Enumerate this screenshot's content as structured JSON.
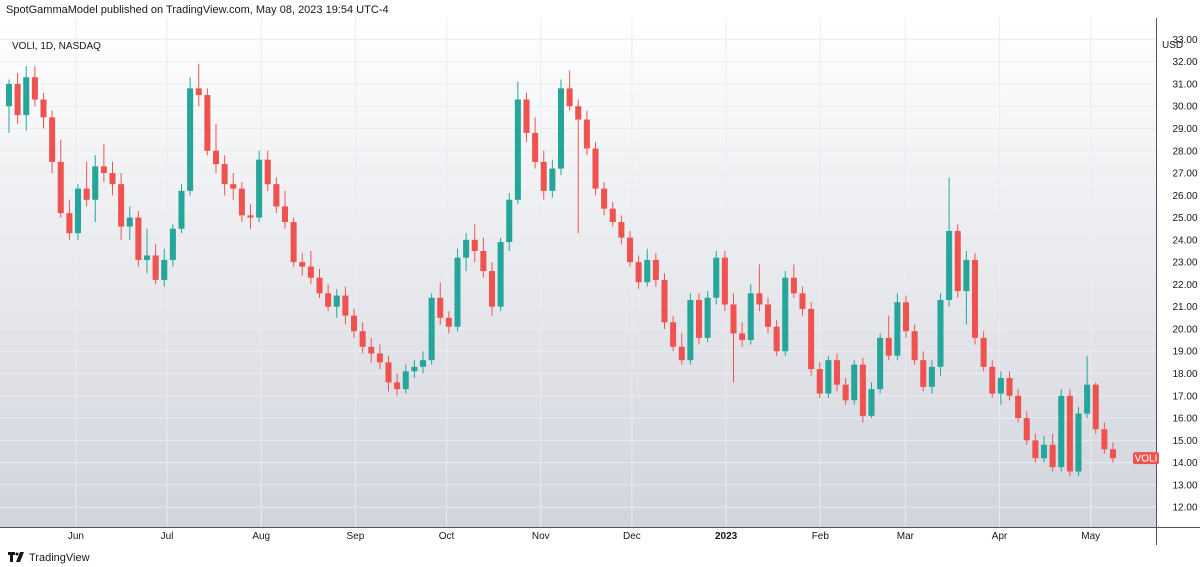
{
  "header": {
    "published_text": "SpotGammaModel published on TradingView.com, May 08, 2023 19:54 UTC-4"
  },
  "symbol_label": "VOLI, 1D, NASDAQ",
  "currency_label": "USD",
  "brand": {
    "name": "TradingView",
    "icon": "tradingview-logo-icon"
  },
  "colors": {
    "up": "#26a69a",
    "down": "#ef5350",
    "grid": "#e9ecf1",
    "axis_text": "#131722"
  },
  "chart_data": {
    "type": "candlestick",
    "title": "VOLI, 1D, NASDAQ",
    "ylabel": "USD",
    "ylim": [
      11.2,
      33.6
    ],
    "y_ticks": [
      "12.00",
      "13.00",
      "14.00",
      "15.00",
      "16.00",
      "17.00",
      "18.00",
      "19.00",
      "20.00",
      "21.00",
      "22.00",
      "23.00",
      "24.00",
      "25.00",
      "26.00",
      "27.00",
      "28.00",
      "29.00",
      "30.00",
      "31.00",
      "32.00",
      "33.00"
    ],
    "x_ticks": [
      {
        "label": "Jun",
        "date": "2022-06-01"
      },
      {
        "label": "Jul",
        "date": "2022-07-01"
      },
      {
        "label": "Aug",
        "date": "2022-08-01"
      },
      {
        "label": "Sep",
        "date": "2022-09-01"
      },
      {
        "label": "Oct",
        "date": "2022-10-01"
      },
      {
        "label": "Nov",
        "date": "2022-11-01"
      },
      {
        "label": "Dec",
        "date": "2022-12-01"
      },
      {
        "label": "2023",
        "date": "2023-01-01",
        "bold": true
      },
      {
        "label": "Feb",
        "date": "2023-02-01"
      },
      {
        "label": "Mar",
        "date": "2023-03-01"
      },
      {
        "label": "Apr",
        "date": "2023-04-01"
      },
      {
        "label": "May",
        "date": "2023-05-01"
      }
    ],
    "grid": true,
    "last_price_label": "VOLI",
    "last_price": 14.2,
    "candles_ohlc": [
      [
        30.0,
        31.2,
        28.8,
        31.0
      ],
      [
        31.0,
        31.5,
        29.2,
        29.6
      ],
      [
        29.6,
        31.8,
        28.9,
        31.3
      ],
      [
        31.3,
        31.8,
        30.0,
        30.3
      ],
      [
        30.3,
        30.6,
        29.0,
        29.5
      ],
      [
        29.5,
        29.8,
        27.0,
        27.5
      ],
      [
        27.5,
        28.5,
        25.0,
        25.2
      ],
      [
        25.2,
        25.8,
        24.0,
        24.3
      ],
      [
        24.3,
        26.5,
        24.0,
        26.3
      ],
      [
        26.3,
        27.5,
        25.5,
        25.8
      ],
      [
        25.8,
        27.8,
        24.8,
        27.3
      ],
      [
        27.3,
        28.3,
        26.6,
        27.0
      ],
      [
        27.0,
        27.5,
        26.0,
        26.5
      ],
      [
        26.5,
        27.0,
        24.0,
        24.6
      ],
      [
        24.6,
        25.5,
        24.0,
        25.0
      ],
      [
        25.0,
        25.3,
        22.8,
        23.1
      ],
      [
        23.1,
        24.5,
        22.5,
        23.3
      ],
      [
        23.3,
        23.8,
        22.0,
        22.2
      ],
      [
        22.2,
        23.6,
        21.9,
        23.1
      ],
      [
        23.1,
        24.7,
        22.8,
        24.5
      ],
      [
        24.5,
        26.5,
        24.3,
        26.2
      ],
      [
        26.2,
        31.3,
        26.0,
        30.8
      ],
      [
        30.8,
        31.9,
        30.0,
        30.5
      ],
      [
        30.5,
        30.8,
        27.8,
        28.0
      ],
      [
        28.0,
        29.2,
        27.0,
        27.4
      ],
      [
        27.4,
        27.8,
        26.0,
        26.5
      ],
      [
        26.5,
        27.0,
        25.8,
        26.3
      ],
      [
        26.3,
        26.6,
        24.8,
        25.1
      ],
      [
        25.1,
        25.6,
        24.5,
        25.0
      ],
      [
        25.0,
        28.0,
        24.8,
        27.6
      ],
      [
        27.6,
        28.0,
        26.2,
        26.5
      ],
      [
        26.5,
        26.8,
        25.2,
        25.5
      ],
      [
        25.5,
        26.2,
        24.5,
        24.8
      ],
      [
        24.8,
        25.0,
        22.8,
        23.0
      ],
      [
        23.0,
        23.4,
        22.4,
        22.8
      ],
      [
        22.8,
        23.5,
        22.0,
        22.3
      ],
      [
        22.3,
        22.7,
        21.4,
        21.6
      ],
      [
        21.6,
        22.0,
        20.8,
        21.0
      ],
      [
        21.0,
        21.8,
        20.5,
        21.5
      ],
      [
        21.5,
        21.9,
        20.2,
        20.6
      ],
      [
        20.6,
        20.9,
        19.6,
        19.9
      ],
      [
        19.9,
        20.3,
        18.9,
        19.2
      ],
      [
        19.2,
        19.6,
        18.5,
        18.9
      ],
      [
        18.9,
        19.3,
        18.2,
        18.5
      ],
      [
        18.5,
        18.8,
        17.2,
        17.6
      ],
      [
        17.6,
        18.0,
        17.0,
        17.3
      ],
      [
        17.3,
        18.4,
        17.1,
        18.1
      ],
      [
        18.1,
        18.6,
        17.8,
        18.3
      ],
      [
        18.3,
        19.0,
        18.0,
        18.6
      ],
      [
        18.6,
        21.6,
        18.4,
        21.4
      ],
      [
        21.4,
        22.1,
        20.2,
        20.5
      ],
      [
        20.5,
        20.8,
        19.8,
        20.1
      ],
      [
        20.1,
        23.6,
        19.9,
        23.2
      ],
      [
        23.2,
        24.3,
        22.6,
        24.0
      ],
      [
        24.0,
        24.7,
        23.0,
        23.5
      ],
      [
        23.5,
        24.1,
        22.3,
        22.6
      ],
      [
        22.6,
        23.0,
        20.6,
        21.0
      ],
      [
        21.0,
        24.1,
        20.8,
        23.9
      ],
      [
        23.9,
        26.1,
        23.5,
        25.8
      ],
      [
        25.8,
        31.1,
        25.6,
        30.3
      ],
      [
        30.3,
        30.6,
        28.4,
        28.8
      ],
      [
        28.8,
        29.5,
        27.2,
        27.5
      ],
      [
        27.5,
        28.0,
        25.8,
        26.2
      ],
      [
        26.2,
        27.6,
        25.9,
        27.2
      ],
      [
        27.2,
        31.2,
        26.9,
        30.8
      ],
      [
        30.8,
        31.6,
        29.8,
        30.0
      ],
      [
        30.0,
        30.3,
        24.3,
        29.4
      ],
      [
        29.4,
        29.8,
        27.8,
        28.1
      ],
      [
        28.1,
        28.4,
        26.0,
        26.3
      ],
      [
        26.3,
        26.6,
        25.1,
        25.4
      ],
      [
        25.4,
        25.7,
        24.6,
        24.8
      ],
      [
        24.8,
        25.1,
        23.8,
        24.1
      ],
      [
        24.1,
        24.4,
        22.8,
        23.0
      ],
      [
        23.0,
        23.3,
        21.8,
        22.1
      ],
      [
        22.1,
        23.6,
        21.9,
        23.1
      ],
      [
        23.1,
        23.4,
        21.9,
        22.2
      ],
      [
        22.2,
        22.5,
        20.0,
        20.3
      ],
      [
        20.3,
        20.6,
        19.0,
        19.2
      ],
      [
        19.2,
        19.8,
        18.4,
        18.6
      ],
      [
        18.6,
        21.6,
        18.4,
        21.3
      ],
      [
        21.3,
        21.6,
        19.3,
        19.6
      ],
      [
        19.6,
        21.7,
        19.4,
        21.4
      ],
      [
        21.4,
        23.5,
        21.1,
        23.2
      ],
      [
        23.2,
        23.5,
        20.8,
        21.1
      ],
      [
        21.1,
        21.6,
        17.6,
        19.8
      ],
      [
        19.8,
        20.3,
        19.2,
        19.5
      ],
      [
        19.5,
        22.0,
        19.3,
        21.6
      ],
      [
        21.6,
        22.9,
        20.8,
        21.1
      ],
      [
        21.1,
        21.4,
        19.8,
        20.1
      ],
      [
        20.1,
        20.4,
        18.8,
        19.0
      ],
      [
        19.0,
        22.6,
        18.8,
        22.3
      ],
      [
        22.3,
        22.9,
        21.4,
        21.6
      ],
      [
        21.6,
        21.9,
        20.6,
        20.9
      ],
      [
        20.9,
        21.2,
        17.9,
        18.2
      ],
      [
        18.2,
        18.5,
        16.9,
        17.1
      ],
      [
        17.1,
        18.8,
        16.9,
        18.6
      ],
      [
        18.6,
        18.9,
        17.2,
        17.5
      ],
      [
        17.5,
        17.8,
        16.6,
        16.8
      ],
      [
        16.8,
        18.6,
        16.6,
        18.4
      ],
      [
        18.4,
        18.7,
        15.8,
        16.1
      ],
      [
        16.1,
        17.6,
        16.0,
        17.3
      ],
      [
        17.3,
        19.8,
        17.1,
        19.6
      ],
      [
        19.6,
        20.6,
        18.6,
        18.8
      ],
      [
        18.8,
        21.6,
        18.6,
        21.2
      ],
      [
        21.2,
        21.5,
        19.6,
        19.9
      ],
      [
        19.9,
        20.2,
        18.4,
        18.6
      ],
      [
        18.6,
        19.0,
        17.2,
        17.4
      ],
      [
        17.4,
        18.6,
        17.1,
        18.3
      ],
      [
        18.3,
        21.6,
        17.9,
        21.3
      ],
      [
        21.3,
        26.8,
        21.0,
        24.4
      ],
      [
        24.4,
        24.7,
        21.4,
        21.7
      ],
      [
        21.7,
        23.5,
        20.2,
        23.1
      ],
      [
        23.1,
        23.4,
        19.3,
        19.6
      ],
      [
        19.6,
        19.9,
        18.1,
        18.3
      ],
      [
        18.3,
        18.6,
        16.9,
        17.1
      ],
      [
        17.1,
        18.1,
        16.6,
        17.8
      ],
      [
        17.8,
        18.1,
        16.8,
        17.0
      ],
      [
        17.0,
        17.3,
        15.8,
        16.0
      ],
      [
        16.0,
        16.3,
        14.8,
        15.0
      ],
      [
        15.0,
        15.3,
        14.0,
        14.2
      ],
      [
        14.2,
        15.2,
        14.0,
        14.8
      ],
      [
        14.8,
        15.3,
        13.6,
        13.8
      ],
      [
        13.8,
        17.3,
        13.6,
        17.0
      ],
      [
        17.0,
        17.3,
        13.4,
        13.6
      ],
      [
        13.6,
        16.5,
        13.4,
        16.2
      ],
      [
        16.2,
        18.8,
        16.0,
        17.5
      ],
      [
        17.5,
        17.6,
        15.3,
        15.5
      ],
      [
        15.5,
        15.8,
        14.4,
        14.6
      ],
      [
        14.6,
        14.9,
        14.0,
        14.2
      ]
    ]
  }
}
